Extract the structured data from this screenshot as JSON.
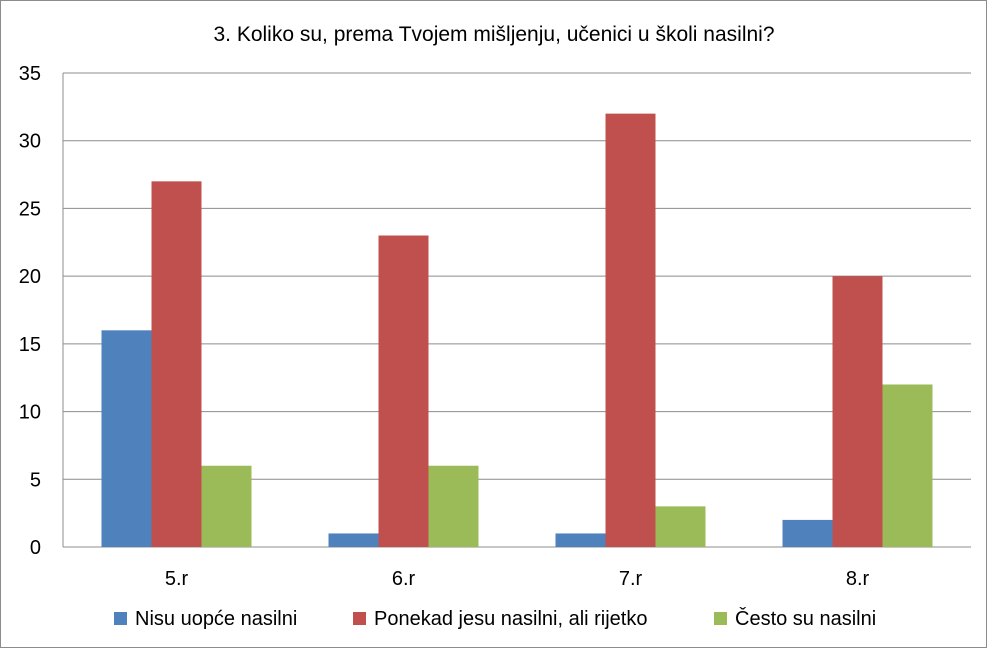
{
  "chart_data": {
    "type": "bar",
    "title": "3. Koliko su, prema Tvojem mišljenju, učenici u školi nasilni?",
    "xlabel": "",
    "ylabel": "",
    "categories": [
      "5.r",
      "6.r",
      "7.r",
      "8.r"
    ],
    "series": [
      {
        "name": "Nisu uopće nasilni",
        "color": "#4f81bd",
        "values": [
          16,
          1,
          1,
          2
        ]
      },
      {
        "name": "Ponekad jesu nasilni, ali rijetko",
        "color": "#c0504d",
        "values": [
          27,
          23,
          32,
          20
        ]
      },
      {
        "name": "Često su nasilni",
        "color": "#9bbb59",
        "values": [
          6,
          6,
          3,
          12
        ]
      }
    ],
    "ylim": [
      0,
      35
    ],
    "yticks": [
      0,
      5,
      10,
      15,
      20,
      25,
      30,
      35
    ],
    "grid": true,
    "legend_position": "bottom"
  }
}
